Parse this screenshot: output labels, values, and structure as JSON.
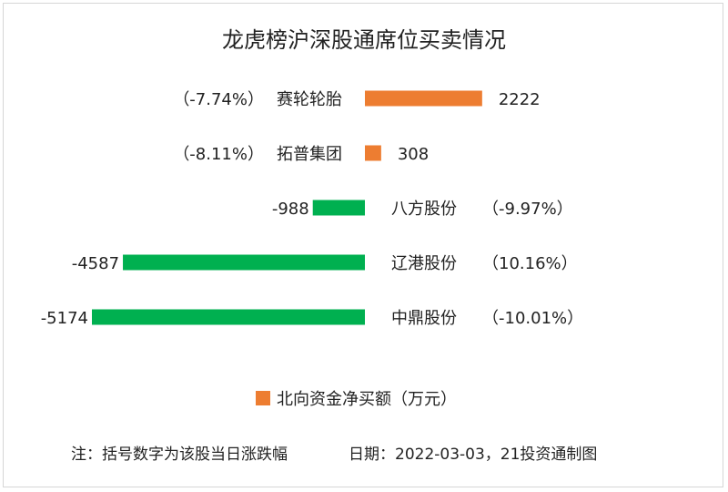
{
  "chart_data": {
    "type": "bar",
    "orientation": "horizontal",
    "title": "龙虎榜沪深股通席位买卖情况",
    "series": [
      {
        "name": "北向资金净买额（万元）",
        "color": "#ed7d31"
      }
    ],
    "categories": [
      "赛轮轮胎",
      "拓普集团",
      "八方股份",
      "辽港股份",
      "中鼎股份"
    ],
    "values": [
      2222,
      308,
      -988,
      -4587,
      -5174
    ],
    "value_labels": [
      "2222",
      "308",
      "-988",
      "-4587",
      "-5174"
    ],
    "pct_labels": [
      "（-7.74%）",
      "（-8.11%）",
      "（-9.97%）",
      "（10.16%）",
      "（-10.01%）"
    ],
    "positive_color": "#ed7d31",
    "negative_color": "#00b050",
    "legend_position": "bottom",
    "grid": false
  },
  "footer": {
    "note": "注：括号数字为该股当日涨跌幅",
    "date": "日期：2022-03-03，21投资通制图"
  }
}
